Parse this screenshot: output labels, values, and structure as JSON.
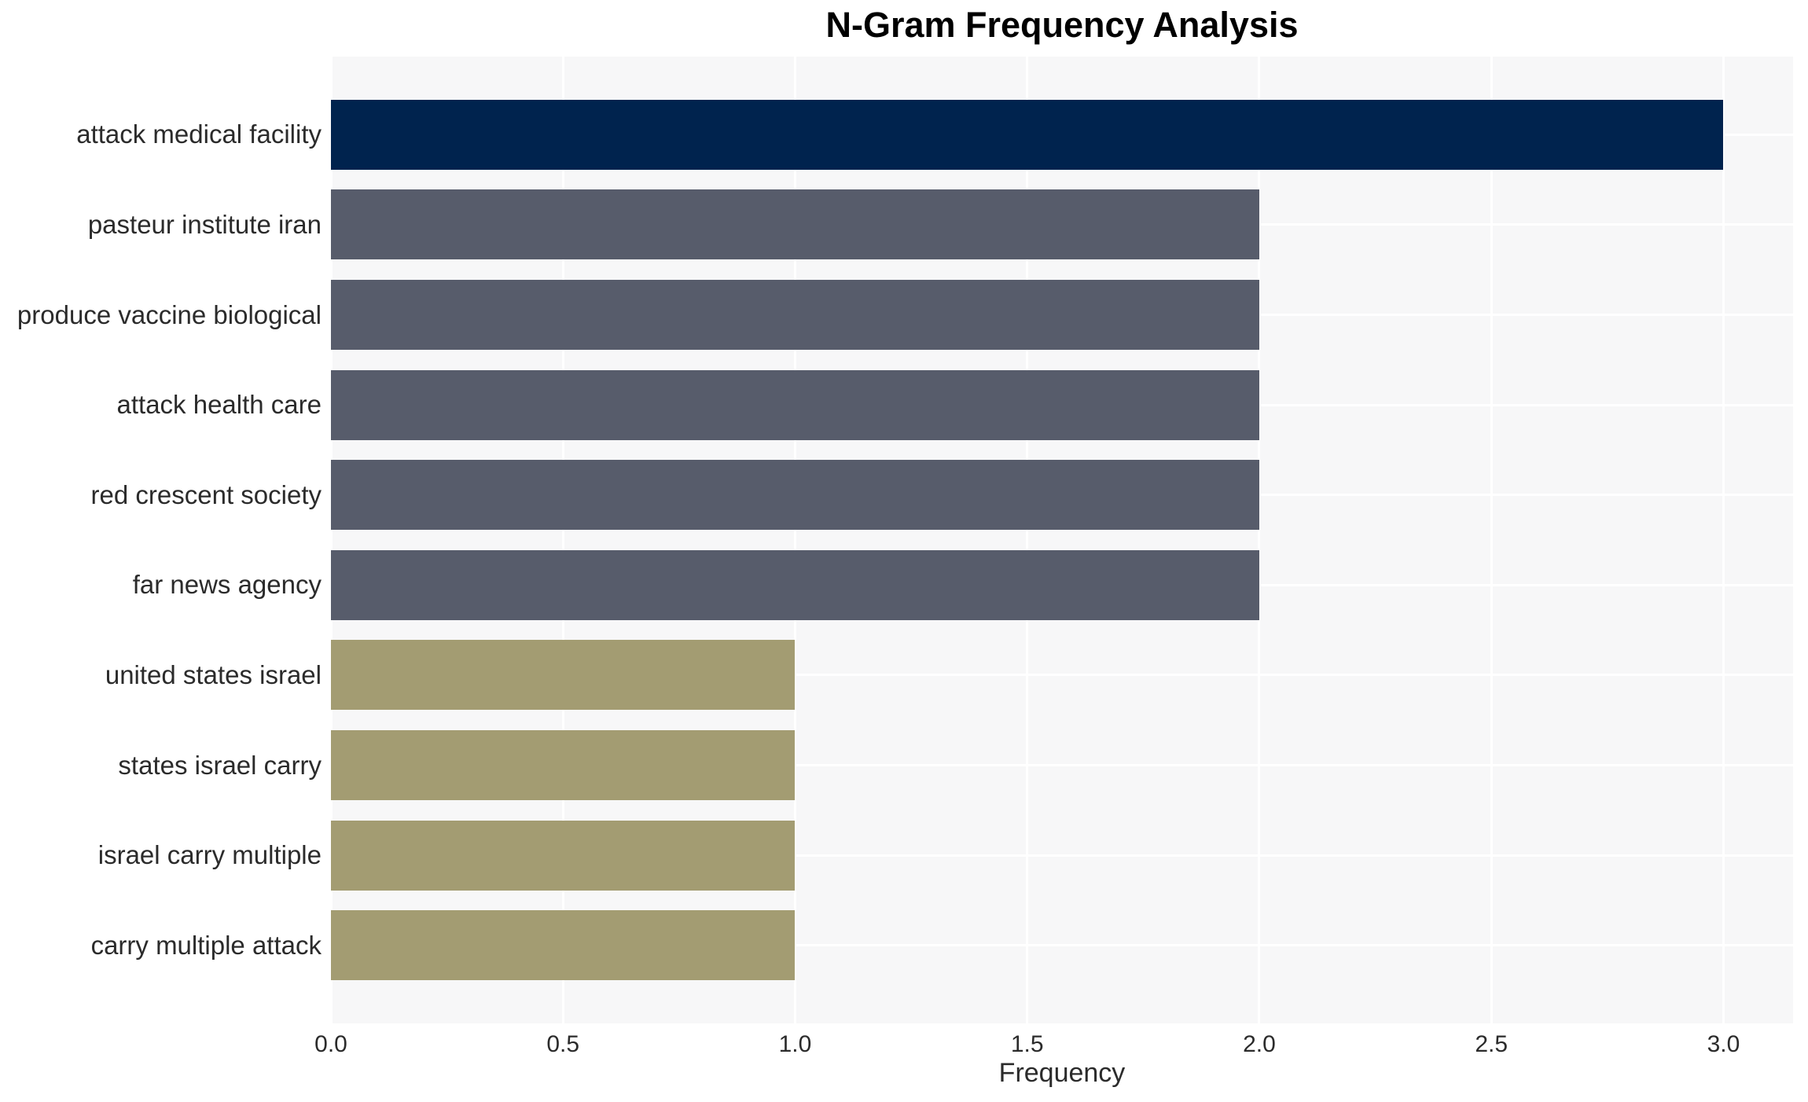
{
  "chart_data": {
    "type": "bar",
    "orientation": "horizontal",
    "title": "N-Gram Frequency Analysis",
    "xlabel": "Frequency",
    "ylabel": "",
    "categories": [
      "attack medical facility",
      "pasteur institute iran",
      "produce vaccine biological",
      "attack health care",
      "red crescent society",
      "far news agency",
      "united states israel",
      "states israel carry",
      "israel carry multiple",
      "carry multiple attack"
    ],
    "values": [
      3,
      2,
      2,
      2,
      2,
      2,
      1,
      1,
      1,
      1
    ],
    "bar_colors": [
      "#00234E",
      "#575C6B",
      "#575C6B",
      "#575C6B",
      "#575C6B",
      "#575C6B",
      "#A39C72",
      "#A39C72",
      "#A39C72",
      "#A39C72"
    ],
    "xticks": [
      0,
      0.5,
      1,
      1.5,
      2,
      2.5,
      3
    ],
    "xtick_labels": [
      "0.0",
      "0.5",
      "1.0",
      "1.5",
      "2.0",
      "2.5",
      "3.0"
    ],
    "xlim": [
      0,
      3.15
    ],
    "grid": true,
    "legend": false,
    "colors": {
      "plot_background": "#F7F7F8",
      "gridline": "#FFFFFF",
      "title_text": "#000000",
      "axis_text": "#2B2B2B"
    }
  }
}
